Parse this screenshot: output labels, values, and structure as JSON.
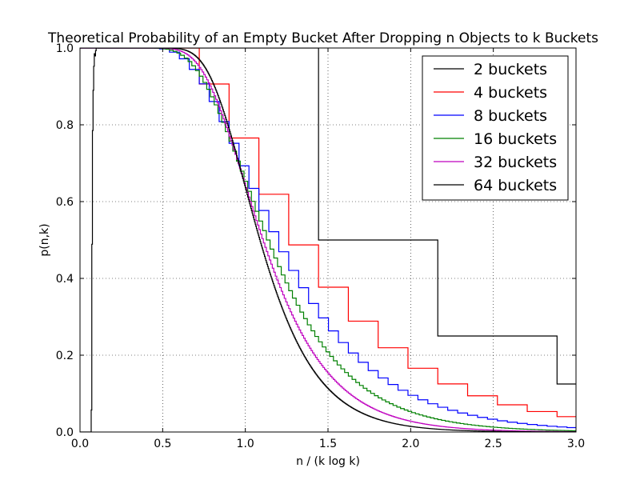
{
  "chart_data": {
    "type": "line",
    "title": "Theoretical Probability of an Empty Bucket After Dropping n Objects to k Buckets",
    "xlabel": "n / (k log k)",
    "ylabel": "p(n,k)",
    "xlim": [
      0.0,
      3.0
    ],
    "ylim": [
      0.0,
      1.0
    ],
    "xticks": [
      "0.0",
      "0.5",
      "1.0",
      "1.5",
      "2.0",
      "2.5",
      "3.0"
    ],
    "yticks": [
      "0.0",
      "0.2",
      "0.4",
      "0.6",
      "0.8",
      "1.0"
    ],
    "grid": true,
    "grid_style": "dotted",
    "legend_position": "top-right",
    "series": [
      {
        "name": "2 buckets",
        "k": 2,
        "color": "#000000"
      },
      {
        "name": "4 buckets",
        "k": 4,
        "color": "#ff0000"
      },
      {
        "name": "8 buckets",
        "k": 8,
        "color": "#0000ff"
      },
      {
        "name": "16 buckets",
        "k": 16,
        "color": "#008000"
      },
      {
        "name": "32 buckets",
        "k": 32,
        "color": "#bf00bf"
      },
      {
        "name": "64 buckets",
        "k": 64,
        "color": "#000000"
      }
    ]
  }
}
